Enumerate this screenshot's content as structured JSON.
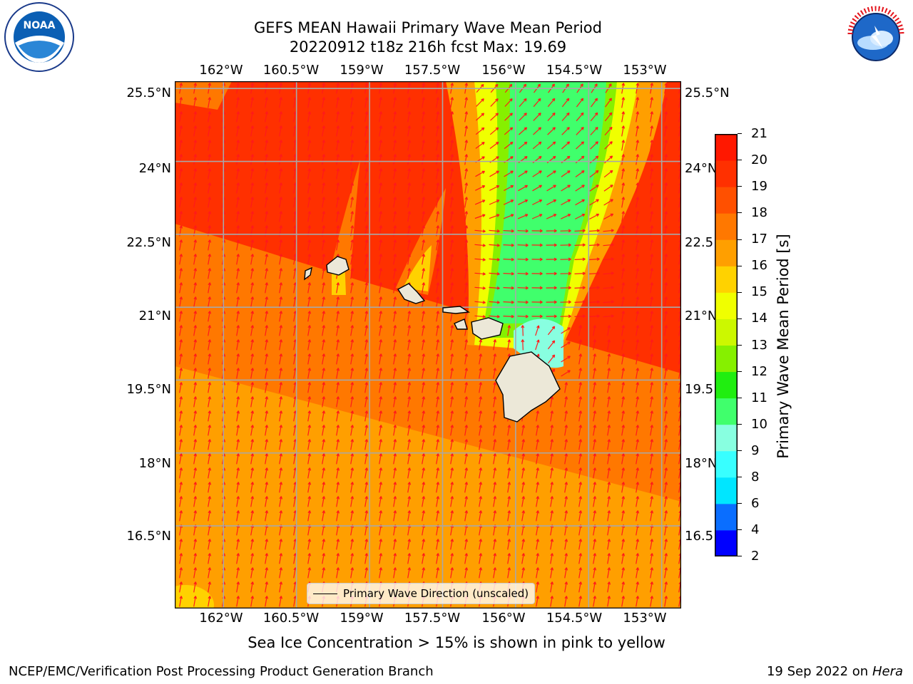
{
  "header": {
    "title_line1": "GEFS MEAN Hawaii Primary Wave Mean Period",
    "title_line2": "20220912 t18z 216h fcst   Max: 19.69"
  },
  "logos": {
    "left": {
      "text": "NOAA",
      "icon": "noaa-logo"
    },
    "right": {
      "text": "NATIONAL WEATHER SERVICE",
      "icon": "nws-logo"
    }
  },
  "map": {
    "lon_labels": [
      "162°W",
      "160.5°W",
      "159°W",
      "157.5°W",
      "156°W",
      "154.5°W",
      "153°W"
    ],
    "lat_labels": [
      "25.5°N",
      "24°N",
      "22.5°N",
      "21°N",
      "19.5°N",
      "18°N",
      "16.5°N"
    ],
    "lat_labels_right": [
      "25.5°N",
      "24°N",
      "22.5",
      "21°N",
      "19.5",
      "18°N",
      "16.5"
    ],
    "lon_range": [
      -163,
      -152.6
    ],
    "lat_range": [
      14.8,
      25.65
    ],
    "grid": true,
    "field": "Primary Wave Mean Period",
    "arrow_color": "#ff1a1a",
    "land_color": "#ece8d8"
  },
  "colorbar": {
    "title": "Primary Wave Mean Period [s]",
    "levels": [
      2,
      4,
      6,
      8,
      9,
      10,
      11,
      12,
      13,
      14,
      15,
      16,
      17,
      18,
      19,
      20,
      21
    ],
    "colors": [
      "#0000ff",
      "#0a6eff",
      "#00e6ff",
      "#38ffff",
      "#88ffe0",
      "#40ff6c",
      "#20ee10",
      "#86f000",
      "#ccf800",
      "#f0ff00",
      "#ffd200",
      "#ff9f00",
      "#ff7800",
      "#ff5000",
      "#ff3000",
      "#ff1800"
    ]
  },
  "legend": {
    "label": "Primary Wave Direction (unscaled)"
  },
  "note": "Sea Ice Concentration > 15% is shown in pink to yellow",
  "footer": {
    "left": "NCEP/EMC/Verification Post Processing Product Generation Branch",
    "right_prefix": "19 Sep 2022 on",
    "right_host": "Hera"
  }
}
